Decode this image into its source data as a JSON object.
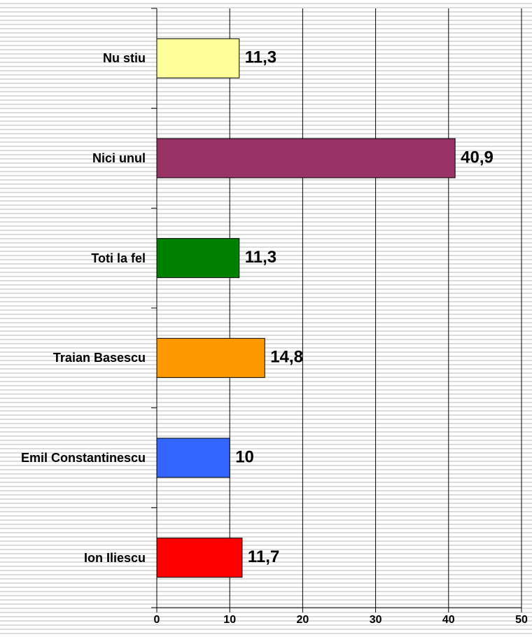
{
  "chart_data": {
    "type": "bar",
    "orientation": "horizontal",
    "categories": [
      "Nu stiu",
      "Nici unul",
      "Toti la fel",
      "Traian Basescu",
      "Emil Constantinescu",
      "Ion Iliescu"
    ],
    "values": [
      11.3,
      40.9,
      11.3,
      14.8,
      10,
      11.7
    ],
    "value_labels": [
      "11,3",
      "40,9",
      "11,3",
      "14,8",
      "10",
      "11,7"
    ],
    "colors": [
      "#ffff99",
      "#993366",
      "#008000",
      "#ff9900",
      "#3366ff",
      "#ff0000"
    ],
    "xlim": [
      0,
      50
    ],
    "xticks": [
      0,
      10,
      20,
      30,
      40,
      50
    ],
    "grid": true
  }
}
